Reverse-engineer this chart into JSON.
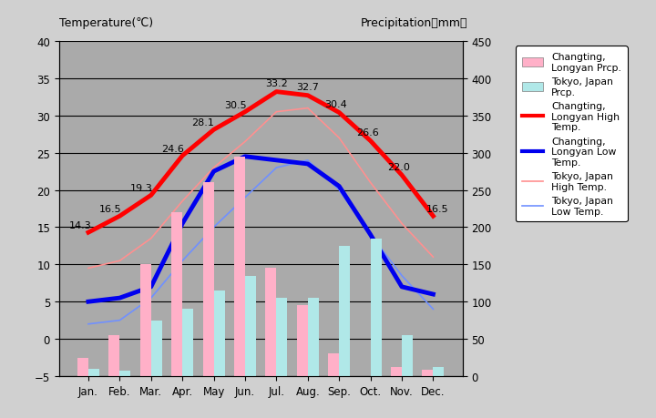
{
  "months": [
    "Jan.",
    "Feb.",
    "Mar.",
    "Apr.",
    "May",
    "Jun.",
    "Jul.",
    "Aug.",
    "Sep.",
    "Oct.",
    "Nov.",
    "Dec."
  ],
  "changting_prcp": [
    25,
    55,
    150,
    220,
    260,
    295,
    145,
    95,
    30,
    -10,
    12,
    8
  ],
  "tokyo_prcp": [
    10,
    7,
    75,
    90,
    115,
    135,
    105,
    105,
    175,
    185,
    55,
    12
  ],
  "changting_high": [
    14.3,
    16.5,
    19.3,
    24.6,
    28.1,
    30.5,
    33.2,
    32.7,
    30.4,
    26.6,
    22.0,
    16.5
  ],
  "changting_low": [
    5.0,
    5.5,
    7.0,
    15.5,
    22.5,
    24.5,
    24.0,
    23.5,
    20.5,
    14.0,
    7.0,
    6.0
  ],
  "tokyo_high": [
    9.5,
    10.5,
    13.5,
    18.5,
    23.0,
    26.5,
    30.5,
    31.0,
    27.0,
    21.0,
    15.5,
    11.0
  ],
  "tokyo_low": [
    2.0,
    2.5,
    5.5,
    10.5,
    15.0,
    19.0,
    23.0,
    24.0,
    20.0,
    14.0,
    8.5,
    4.0
  ],
  "changting_high_labels": [
    "14.3",
    "16.5",
    "19.3",
    "24.6",
    "28.1",
    "30.5",
    "33.2",
    "32.7",
    "30.4",
    "26.6",
    "22.0",
    "16.5"
  ],
  "color_changting_prcp": "#FFB0C8",
  "color_tokyo_prcp": "#B0E8E8",
  "color_changting_high": "#FF0000",
  "color_changting_low": "#0000EE",
  "color_tokyo_high": "#FF9090",
  "color_tokyo_low": "#7090FF",
  "bg_color": "#D0D0D0",
  "plot_bg_color": "#AAAAAA",
  "ylim_temp": [
    -5,
    40
  ],
  "ylim_prcp": [
    0,
    450
  ],
  "yticks_temp": [
    -5,
    0,
    5,
    10,
    15,
    20,
    25,
    30,
    35,
    40
  ],
  "yticks_prcp": [
    0,
    50,
    100,
    150,
    200,
    250,
    300,
    350,
    400,
    450
  ],
  "title_left": "Temperature(℃)",
  "title_right": "Precipitation（mm）",
  "legend_labels": [
    "Changting,\nLongyan Prcp.",
    "Tokyo, Japan\nPrcp.",
    "Changting,\nLongyan High\nTemp.",
    "Changting,\nLongyan Low\nTemp.",
    "Tokyo, Japan\nHigh Temp.",
    "Tokyo, Japan\nLow Temp."
  ]
}
